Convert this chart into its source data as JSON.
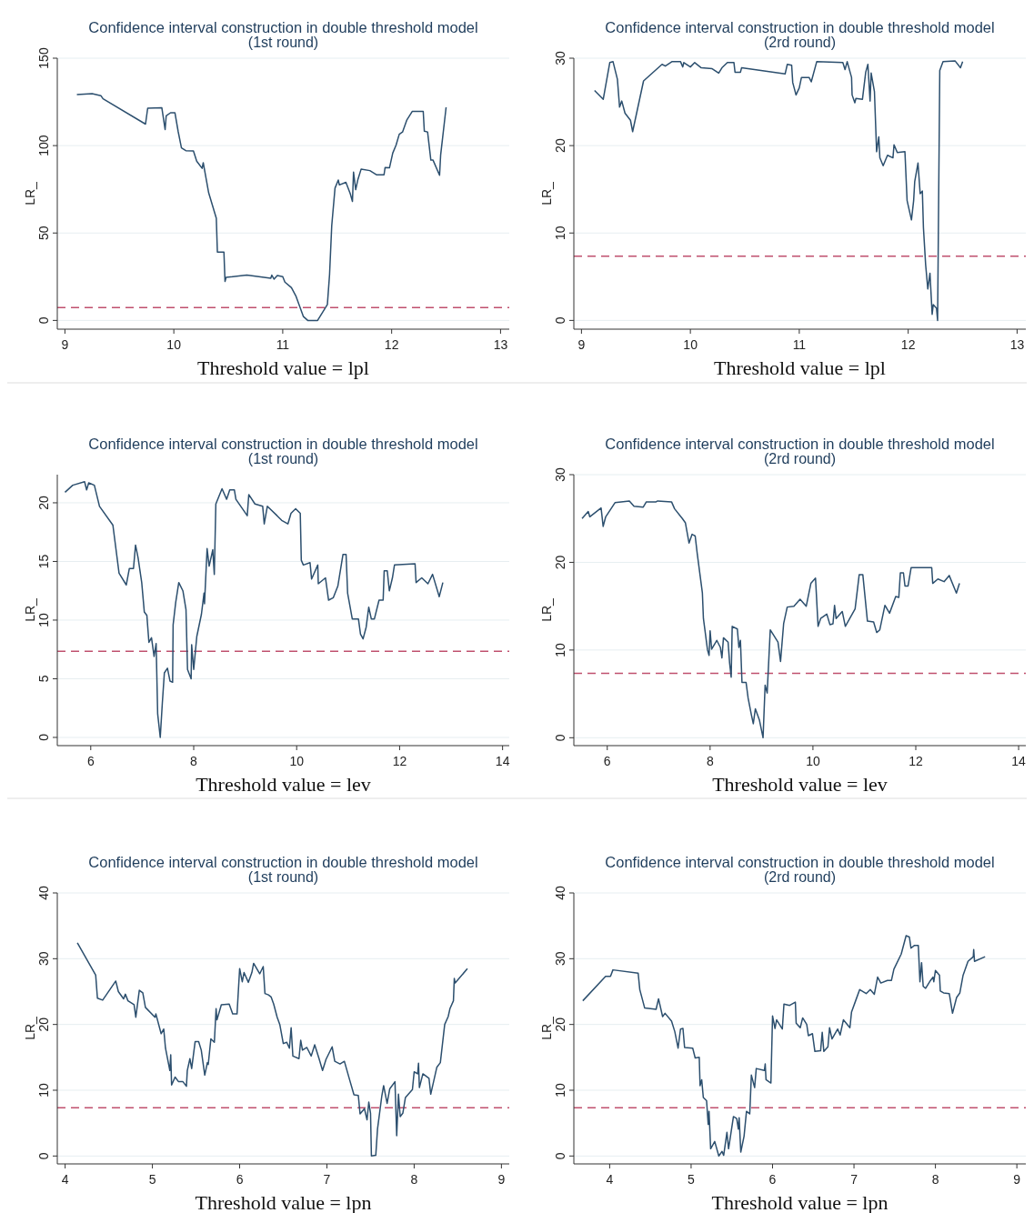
{
  "chart_data": [
    {
      "type": "line",
      "title": "Confidence interval construction in double threshold model",
      "subtitle": "(1st round)",
      "xlabel": "Threshold value = lpl",
      "ylabel": "LR_",
      "color": "#2c4f6e",
      "grid": "y",
      "xlim": [
        8.93,
        13.08
      ],
      "xticks": [
        9,
        10,
        11,
        12,
        13
      ],
      "ylim": [
        -5,
        150
      ],
      "yticks": [
        0,
        50,
        100,
        150
      ],
      "ref_lines": [
        {
          "axis": "y",
          "value": 7.35,
          "color": "#c0506e",
          "line_style": "dashed"
        }
      ],
      "x": [
        9.11,
        9.25,
        9.33,
        9.35,
        9.74,
        9.76,
        9.89,
        9.92,
        9.93,
        9.97,
        10.01,
        10.04,
        10.07,
        10.11,
        10.18,
        10.21,
        10.26,
        10.27,
        10.32,
        10.39,
        10.4,
        10.46,
        10.47,
        10.48,
        10.67,
        10.89,
        10.9,
        10.92,
        10.95,
        11.0,
        11.02,
        11.08,
        11.12,
        11.19,
        11.23,
        11.32,
        11.41,
        11.43,
        11.45,
        11.48,
        11.51,
        11.52,
        11.58,
        11.62,
        11.64,
        11.65,
        11.67,
        11.69,
        11.72,
        11.8,
        11.86,
        11.93,
        11.94,
        11.98,
        12.01,
        12.04,
        12.07,
        12.1,
        12.14,
        12.19,
        12.29,
        12.3,
        12.33,
        12.36,
        12.38,
        12.44,
        12.45,
        12.5
      ],
      "values": [
        129.2,
        129.7,
        128.6,
        126.8,
        112.3,
        121.4,
        121.6,
        109.2,
        117,
        118.8,
        118.8,
        108,
        98.7,
        97.1,
        96.9,
        91.1,
        87,
        90.2,
        73,
        58.5,
        39.1,
        39.1,
        22.3,
        24.6,
        25.9,
        24.1,
        25.9,
        23.6,
        25.7,
        25,
        21.9,
        18.7,
        14.1,
        2.2,
        0,
        0,
        9.1,
        26.3,
        54.3,
        75.7,
        80.3,
        77.5,
        79,
        72.5,
        68.1,
        84.8,
        74.8,
        80.6,
        86.6,
        85.7,
        83.3,
        83.3,
        87.5,
        87.3,
        95.7,
        100.2,
        106.5,
        107.8,
        114.7,
        119.6,
        119.6,
        108.3,
        107.8,
        91.7,
        91.7,
        83,
        94.7,
        121.9
      ]
    },
    {
      "type": "line",
      "title": "Confidence interval construction in double threshold model",
      "subtitle": "(2rd round)",
      "xlabel": "Threshold value = lpl",
      "ylabel": "LR_",
      "color": "#2c4f6e",
      "grid": "y",
      "xlim": [
        8.93,
        13.08
      ],
      "xticks": [
        9,
        10,
        11,
        12,
        13
      ],
      "ylim": [
        -1,
        30
      ],
      "yticks": [
        0,
        10,
        20,
        30
      ],
      "ref_lines": [
        {
          "axis": "y",
          "value": 7.35,
          "color": "#c0506e",
          "line_style": "dashed"
        }
      ],
      "x": [
        9.12,
        9.2,
        9.26,
        9.29,
        9.33,
        9.35,
        9.37,
        9.4,
        9.45,
        9.47,
        9.57,
        9.74,
        9.77,
        9.83,
        9.91,
        9.93,
        9.94,
        10.0,
        10.04,
        10.1,
        10.2,
        10.26,
        10.29,
        10.34,
        10.4,
        10.41,
        10.46,
        10.47,
        10.87,
        10.89,
        10.93,
        10.94,
        10.97,
        11.0,
        11.02,
        11.09,
        11.11,
        11.16,
        11.4,
        11.42,
        11.44,
        11.48,
        11.485,
        11.51,
        11.52,
        11.58,
        11.61,
        11.63,
        11.65,
        11.66,
        11.69,
        11.71,
        11.73,
        11.74,
        11.77,
        11.81,
        11.86,
        11.87,
        11.9,
        11.97,
        11.99,
        12.03,
        12.05,
        12.06,
        12.09,
        12.11,
        12.13,
        12.14,
        12.16,
        12.18,
        12.2,
        12.22,
        12.23,
        12.26,
        12.27,
        12.29,
        12.32,
        12.43,
        12.48,
        12.5
      ],
      "values": [
        26.3,
        25.3,
        29.5,
        29.6,
        27.6,
        24.4,
        25.1,
        23.7,
        22.9,
        21.6,
        27.4,
        29.3,
        29.1,
        29.6,
        29.6,
        29,
        29.5,
        29,
        29.5,
        28.9,
        28.8,
        28.3,
        28.9,
        29.5,
        29.5,
        28.4,
        28.4,
        28.9,
        28.2,
        29.3,
        29.2,
        27.2,
        25.8,
        26.6,
        27.8,
        27.8,
        27.3,
        29.6,
        29.5,
        28.7,
        29.6,
        27.8,
        25.8,
        24.9,
        25.4,
        25.3,
        28.4,
        29.3,
        25.1,
        28.3,
        26.2,
        19.3,
        21,
        18.6,
        17.7,
        18.9,
        18.6,
        20.1,
        19.2,
        19.3,
        13.7,
        11.5,
        13.7,
        15.9,
        18,
        14.5,
        14.8,
        10.6,
        6.4,
        3.6,
        5.4,
        0.7,
        1.8,
        1.4,
        0,
        28.6,
        29.6,
        29.7,
        28.9,
        29.6
      ]
    },
    {
      "type": "line",
      "title": "Confidence interval construction in double threshold model",
      "subtitle": "(1st round)",
      "xlabel": "Threshold value = lev",
      "ylabel": "LR_",
      "color": "#2c4f6e",
      "grid": "y",
      "xlim": [
        5.35,
        14.13
      ],
      "xticks": [
        6,
        8,
        10,
        12,
        14
      ],
      "ylim": [
        -0.7,
        22.4
      ],
      "yticks": [
        0,
        5,
        10,
        15,
        20
      ],
      "ref_lines": [
        {
          "axis": "y",
          "value": 7.35,
          "color": "#c0506e",
          "line_style": "dashed"
        }
      ],
      "x": [
        5.5,
        5.65,
        5.88,
        5.92,
        5.96,
        6.07,
        6.17,
        6.43,
        6.55,
        6.69,
        6.75,
        6.83,
        6.87,
        6.92,
        6.99,
        7.04,
        7.09,
        7.13,
        7.18,
        7.23,
        7.27,
        7.3,
        7.35,
        7.39,
        7.43,
        7.49,
        7.54,
        7.59,
        7.6,
        7.65,
        7.71,
        7.79,
        7.85,
        7.88,
        7.95,
        7.96,
        8.0,
        8.06,
        8.15,
        8.2,
        8.21,
        8.26,
        8.3,
        8.37,
        8.4,
        8.43,
        8.55,
        8.64,
        8.7,
        8.79,
        8.82,
        9.04,
        9.07,
        9.19,
        9.34,
        9.37,
        9.43,
        9.62,
        9.71,
        9.83,
        9.89,
        9.98,
        10.07,
        10.09,
        10.13,
        10.26,
        10.29,
        10.41,
        10.42,
        10.56,
        10.62,
        10.71,
        10.8,
        10.9,
        10.96,
        10.99,
        11.08,
        11.2,
        11.24,
        11.29,
        11.35,
        11.4,
        11.45,
        11.51,
        11.6,
        11.68,
        11.7,
        11.76,
        11.8,
        11.86,
        11.9,
        12.3,
        12.32,
        12.43,
        12.55,
        12.64,
        12.77,
        12.84
      ],
      "values": [
        20.9,
        21.5,
        21.8,
        21.1,
        21.7,
        21.5,
        19.7,
        18.1,
        14,
        13,
        14.4,
        14.4,
        16.4,
        15.3,
        13.2,
        10.7,
        10.4,
        8.1,
        8.5,
        6.9,
        8,
        2,
        0,
        2.9,
        5.5,
        5.9,
        4.8,
        4.7,
        9.6,
        11.5,
        13.2,
        12.5,
        10.9,
        5.8,
        5,
        7.9,
        5.8,
        8.6,
        10.5,
        12.3,
        11.4,
        16.1,
        14.6,
        16,
        13.9,
        19.9,
        21.2,
        20.3,
        21.1,
        21.1,
        20.3,
        18.9,
        20.7,
        19.9,
        19.7,
        18.2,
        19.7,
        18.9,
        18.5,
        18.2,
        19.1,
        19.5,
        19.1,
        15.1,
        14.7,
        14.9,
        13.5,
        14.7,
        13.1,
        13.6,
        11.7,
        11.9,
        12.9,
        15.6,
        15.6,
        12.3,
        10.1,
        10.1,
        8.8,
        8.4,
        9.4,
        11.1,
        10.1,
        10.1,
        11.7,
        11.7,
        14.2,
        14.2,
        12.5,
        13.6,
        14.7,
        14.8,
        13.2,
        13.6,
        13.1,
        13.9,
        12,
        13.2
      ]
    },
    {
      "type": "line",
      "title": "Confidence interval construction in double threshold model",
      "subtitle": "(2rd round)",
      "xlabel": "Threshold value = lev",
      "ylabel": "LR_",
      "color": "#2c4f6e",
      "grid": "y",
      "xlim": [
        5.35,
        14.14
      ],
      "xticks": [
        6,
        8,
        10,
        12,
        14
      ],
      "ylim": [
        -0.9,
        30
      ],
      "yticks": [
        0,
        10,
        20,
        30
      ],
      "ref_lines": [
        {
          "axis": "y",
          "value": 7.35,
          "color": "#c0506e",
          "line_style": "dashed"
        }
      ],
      "x": [
        5.51,
        5.63,
        5.66,
        5.88,
        5.92,
        5.97,
        6.15,
        6.43,
        6.52,
        6.7,
        6.76,
        6.95,
        6.98,
        7.25,
        7.31,
        7.46,
        7.52,
        7.59,
        7.65,
        7.71,
        7.75,
        7.85,
        7.87,
        7.95,
        7.98,
        8.0,
        8.03,
        8.13,
        8.2,
        8.23,
        8.26,
        8.35,
        8.38,
        8.41,
        8.43,
        8.53,
        8.56,
        8.59,
        8.62,
        8.7,
        8.74,
        8.8,
        8.84,
        8.88,
        8.96,
        9.03,
        9.07,
        9.11,
        9.17,
        9.32,
        9.37,
        9.43,
        9.5,
        9.63,
        9.75,
        9.87,
        9.96,
        10.05,
        10.1,
        10.15,
        10.27,
        10.33,
        10.39,
        10.42,
        10.45,
        10.57,
        10.63,
        10.82,
        10.9,
        10.97,
        11.06,
        11.18,
        11.24,
        11.3,
        11.4,
        11.49,
        11.61,
        11.67,
        11.7,
        11.76,
        11.79,
        11.85,
        11.91,
        12.31,
        12.33,
        12.43,
        12.55,
        12.65,
        12.79,
        12.85
      ],
      "values": [
        25,
        25.8,
        25.2,
        26.2,
        24.1,
        25.2,
        26.8,
        27,
        26.4,
        26.3,
        26.9,
        26.9,
        27,
        26.9,
        26.1,
        25,
        24.5,
        22.2,
        23.2,
        23,
        21,
        16.5,
        13.6,
        10,
        9.4,
        12.2,
        10.1,
        11.1,
        10.3,
        9.1,
        11.4,
        10.9,
        8.5,
        6.9,
        12.7,
        12.4,
        10.3,
        11.1,
        6.3,
        6.3,
        4.5,
        2.7,
        1.6,
        3.3,
        2,
        0,
        6,
        5.1,
        12.3,
        10.9,
        8.7,
        13,
        14.9,
        15,
        15.8,
        15,
        17.6,
        18.2,
        12.7,
        13.6,
        14.1,
        12.9,
        13,
        15.1,
        13.6,
        14.4,
        12.7,
        14.7,
        18.6,
        18.6,
        13.3,
        13.2,
        12,
        12.3,
        15.1,
        14.2,
        16.1,
        16,
        18.8,
        18.8,
        17.3,
        17.3,
        19.4,
        19.4,
        17.6,
        18.1,
        17.8,
        18.5,
        16.5,
        17.6
      ]
    },
    {
      "type": "line",
      "title": "Confidence interval construction in double threshold model",
      "subtitle": "(1st round)",
      "xlabel": "Threshold value = lpn",
      "ylabel": "LR_",
      "color": "#2c4f6e",
      "grid": "y",
      "xlim": [
        3.91,
        9.09
      ],
      "xticks": [
        4,
        5,
        6,
        7,
        8,
        9
      ],
      "ylim": [
        -1.2,
        40
      ],
      "yticks": [
        0,
        10,
        20,
        30,
        40
      ],
      "ref_lines": [
        {
          "axis": "y",
          "value": 7.35,
          "color": "#c0506e",
          "line_style": "dashed"
        }
      ],
      "x": [
        4.14,
        4.35,
        4.37,
        4.43,
        4.58,
        4.61,
        4.67,
        4.69,
        4.72,
        4.79,
        4.81,
        4.85,
        4.89,
        4.92,
        5.03,
        5.04,
        5.1,
        5.13,
        5.15,
        5.2,
        5.21,
        5.22,
        5.26,
        5.3,
        5.35,
        5.39,
        5.4,
        5.43,
        5.45,
        5.49,
        5.53,
        5.56,
        5.6,
        5.63,
        5.64,
        5.67,
        5.71,
        5.73,
        5.74,
        5.79,
        5.88,
        5.92,
        5.97,
        6.0,
        6.03,
        6.05,
        6.1,
        6.14,
        6.16,
        6.23,
        6.27,
        6.29,
        6.33,
        6.36,
        6.39,
        6.43,
        6.46,
        6.5,
        6.54,
        6.57,
        6.59,
        6.61,
        6.68,
        6.7,
        6.72,
        6.77,
        6.82,
        6.86,
        6.91,
        6.95,
        6.99,
        7.06,
        7.09,
        7.15,
        7.2,
        7.26,
        7.31,
        7.36,
        7.38,
        7.43,
        7.46,
        7.48,
        7.5,
        7.51,
        7.56,
        7.58,
        7.63,
        7.65,
        7.69,
        7.72,
        7.78,
        7.8,
        7.82,
        7.84,
        7.87,
        7.9,
        7.98,
        8.0,
        8.04,
        8.05,
        8.06,
        8.1,
        8.17,
        8.19,
        8.26,
        8.3,
        8.35,
        8.39,
        8.41,
        8.45,
        8.46,
        8.47,
        8.61
      ],
      "values": [
        32.4,
        27.5,
        24,
        23.7,
        26.6,
        25,
        23.9,
        24.6,
        23.6,
        23,
        21.1,
        25.2,
        24.8,
        22.6,
        21.1,
        21.6,
        18.6,
        19.3,
        16.4,
        13,
        15.4,
        10.8,
        12,
        11.3,
        11.3,
        10.6,
        13,
        14.8,
        13.3,
        17.4,
        17.4,
        16.1,
        12.3,
        14.2,
        13.9,
        17.8,
        17.3,
        22.4,
        20.7,
        23,
        23.1,
        21.6,
        21.6,
        28.5,
        26.5,
        27.9,
        26.4,
        27.9,
        29.3,
        27.7,
        28.8,
        24.7,
        24.5,
        24.2,
        23.1,
        21.1,
        20,
        17.1,
        17.3,
        16.4,
        19.5,
        15.2,
        14.8,
        17.6,
        16.1,
        16.5,
        15.2,
        16.9,
        14.8,
        13,
        14.7,
        16.6,
        14.4,
        14,
        14.4,
        11.6,
        9.3,
        9.2,
        6.4,
        7.2,
        5.5,
        8.2,
        6.5,
        0,
        0.1,
        4.1,
        9.2,
        10.7,
        8,
        10.2,
        11.3,
        3.1,
        9.4,
        6,
        6.5,
        8.9,
        10.1,
        12.8,
        12.5,
        14.1,
        10.4,
        12.5,
        11.8,
        9.4,
        13.5,
        14.2,
        20,
        21.2,
        22.4,
        23.6,
        27,
        26.3,
        28.5
      ]
    },
    {
      "type": "line",
      "title": "Confidence interval construction in double threshold model",
      "subtitle": "(2rd round)",
      "xlabel": "Threshold value = lpn",
      "ylabel": "LR_",
      "color": "#2c4f6e",
      "grid": "y",
      "xlim": [
        3.56,
        9.11
      ],
      "xticks": [
        4,
        5,
        6,
        7,
        8,
        9
      ],
      "ylim": [
        -1.2,
        40
      ],
      "yticks": [
        0,
        10,
        20,
        30,
        40
      ],
      "ref_lines": [
        {
          "axis": "y",
          "value": 7.35,
          "color": "#c0506e",
          "line_style": "dashed"
        }
      ],
      "x": [
        3.67,
        3.95,
        4.01,
        4.04,
        4.35,
        4.37,
        4.43,
        4.57,
        4.6,
        4.65,
        4.68,
        4.76,
        4.8,
        4.84,
        4.87,
        4.9,
        4.92,
        5.02,
        5.05,
        5.1,
        5.11,
        5.13,
        5.15,
        5.19,
        5.21,
        5.22,
        5.24,
        5.29,
        5.34,
        5.38,
        5.4,
        5.44,
        5.46,
        5.52,
        5.56,
        5.58,
        5.59,
        5.61,
        5.65,
        5.68,
        5.72,
        5.74,
        5.78,
        5.8,
        5.9,
        5.91,
        5.92,
        5.98,
        6.0,
        6.03,
        6.05,
        6.12,
        6.14,
        6.21,
        6.28,
        6.29,
        6.34,
        6.37,
        6.42,
        6.44,
        6.49,
        6.52,
        6.59,
        6.61,
        6.63,
        6.68,
        6.7,
        6.73,
        6.8,
        6.83,
        6.87,
        6.95,
        6.97,
        7.02,
        7.07,
        7.15,
        7.2,
        7.25,
        7.29,
        7.33,
        7.41,
        7.46,
        7.49,
        7.58,
        7.64,
        7.68,
        7.7,
        7.74,
        7.79,
        7.81,
        7.83,
        7.85,
        7.88,
        7.94,
        7.97,
        7.98,
        8.0,
        8.05,
        8.06,
        8.1,
        8.17,
        8.21,
        8.26,
        8.3,
        8.34,
        8.4,
        8.465,
        8.47,
        8.48,
        8.61
      ],
      "values": [
        23.6,
        27.3,
        27.3,
        28.3,
        27.8,
        25.3,
        22.5,
        22.3,
        23.9,
        21.2,
        21.7,
        20.5,
        18.9,
        16.4,
        19.3,
        19.4,
        16.5,
        16.4,
        14.9,
        15,
        10.7,
        11.6,
        8.9,
        8.4,
        4.8,
        6.8,
        1.1,
        2.2,
        0,
        0.7,
        0.1,
        3.6,
        1.1,
        6,
        5.7,
        4.1,
        5.8,
        0.6,
        3,
        6.8,
        6.4,
        12.3,
        10.4,
        13.3,
        13,
        14,
        11.6,
        11.1,
        21.3,
        19.4,
        20.7,
        19.3,
        23.1,
        22.9,
        23.4,
        20.2,
        19.5,
        21,
        20,
        18.3,
        18.6,
        15.9,
        16,
        18.8,
        15.9,
        16.6,
        19.5,
        17.8,
        19.3,
        18.4,
        20.7,
        19.5,
        21.9,
        23.6,
        25.3,
        24.7,
        25.3,
        24.6,
        27.2,
        26.3,
        26.7,
        26.7,
        28.4,
        30.7,
        33.5,
        33.3,
        31.6,
        32,
        32,
        26.5,
        29.4,
        25.8,
        25.5,
        26.7,
        27.2,
        26.5,
        28.2,
        27.5,
        25.1,
        24.8,
        24.7,
        21.7,
        24.1,
        24.8,
        27.5,
        29.6,
        30.3,
        31.4,
        29.6,
        30.3
      ]
    }
  ]
}
